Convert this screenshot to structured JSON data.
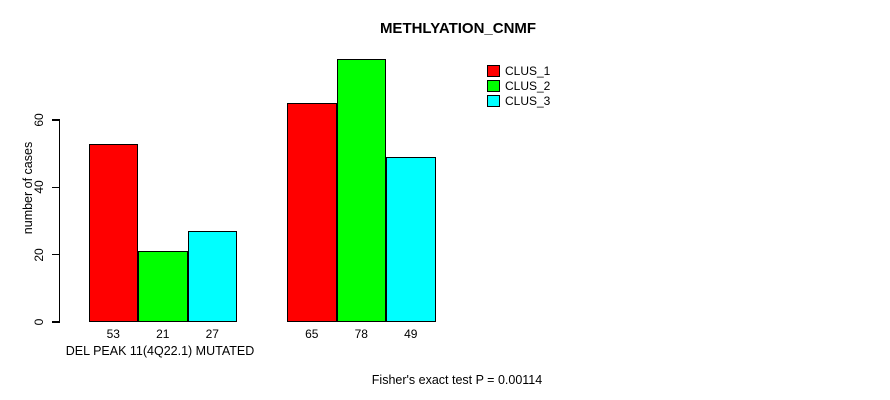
{
  "chart_data": {
    "type": "bar",
    "title": "METHLYATION_CNMF",
    "ylabel": "number of cases",
    "xlabel": "",
    "ylim": [
      0,
      78
    ],
    "yticks": [
      0,
      20,
      40,
      60
    ],
    "grid": false,
    "legend_position": "top-right",
    "bar_value_labels_shown": true,
    "series": [
      {
        "name": "CLUS_1",
        "color": "#FF0000"
      },
      {
        "name": "CLUS_2",
        "color": "#00FF00"
      },
      {
        "name": "CLUS_3",
        "color": "#00FFFF"
      }
    ],
    "groups": [
      {
        "label": "DEL PEAK 11(4Q22.1) MUTATED",
        "values": [
          53,
          21,
          27
        ]
      },
      {
        "label": "",
        "values": [
          65,
          78,
          49
        ]
      }
    ]
  },
  "annotation": "Fisher's exact test P = 0.00114",
  "colors": {
    "axis": "#000000",
    "text": "#000000",
    "background": "#FFFFFF"
  }
}
